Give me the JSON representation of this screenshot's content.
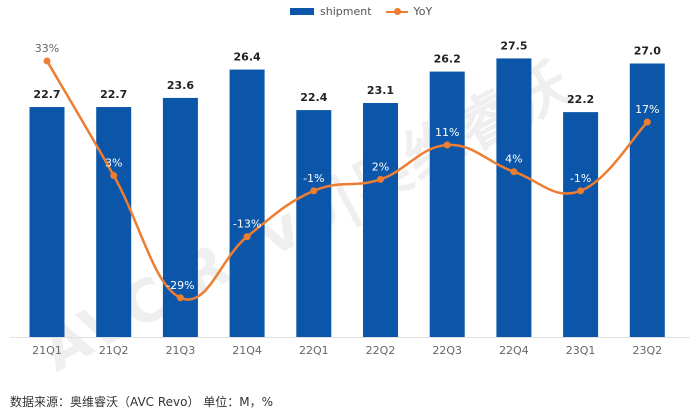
{
  "chart_data": {
    "type": "bar+line",
    "categories": [
      "21Q1",
      "21Q2",
      "21Q3",
      "21Q4",
      "22Q1",
      "22Q2",
      "22Q3",
      "22Q4",
      "23Q1",
      "23Q2"
    ],
    "series": [
      {
        "name": "shipment",
        "type": "bar",
        "values": [
          22.7,
          22.7,
          23.6,
          26.4,
          22.4,
          23.1,
          26.2,
          27.5,
          22.2,
          27.0
        ],
        "labels": [
          "22.7",
          "22.7",
          "23.6",
          "26.4",
          "22.4",
          "23.1",
          "26.2",
          "27.5",
          "22.2",
          "27.0"
        ],
        "color": "#0b56a8"
      },
      {
        "name": "YoY",
        "type": "line",
        "values": [
          33,
          3,
          -29,
          -13,
          -1,
          2,
          11,
          4,
          -1,
          17
        ],
        "labels": [
          "33%",
          "3%",
          "-29%",
          "-13%",
          "-1%",
          "2%",
          "11%",
          "4%",
          "-1%",
          "17%"
        ],
        "color": "#ed7d31"
      }
    ],
    "legend": {
      "placement": "top-center",
      "items": [
        "shipment",
        "YoY"
      ]
    }
  },
  "watermark": "AVC Revo|奥维睿沃",
  "source": "数据来源：奥维睿沃（AVC Revo） 单位：M，%"
}
